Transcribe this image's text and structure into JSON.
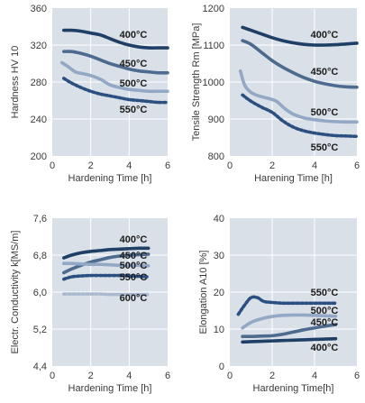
{
  "chart_data": [
    {
      "type": "line",
      "xlabel": "Hardening Time [h]",
      "ylabel": "Hardness HV 10",
      "xlim": [
        0,
        6
      ],
      "ylim": [
        200,
        360
      ],
      "xticks": [
        "0",
        "2",
        "4",
        "6"
      ],
      "yticks": [
        "200",
        "240",
        "280",
        "320",
        "360"
      ],
      "grid": true,
      "series": [
        {
          "name": "400°C",
          "color": "#1f3f66",
          "style": "solid",
          "x": [
            0.6,
            1.0,
            1.5,
            2.0,
            2.5,
            3.0,
            3.5,
            4.0,
            4.5,
            5.0,
            5.5,
            6.0
          ],
          "y": [
            336,
            336,
            335,
            333,
            331,
            327,
            323,
            320,
            318,
            317,
            317,
            317
          ]
        },
        {
          "name": "450°C",
          "color": "#4d6b8f",
          "style": "solid",
          "x": [
            0.6,
            1.0,
            1.5,
            2.0,
            2.5,
            3.0,
            3.5,
            4.0,
            4.5,
            5.0,
            5.5,
            6.0
          ],
          "y": [
            313,
            313,
            311,
            308,
            304,
            300,
            297,
            294,
            292,
            291,
            290,
            290
          ]
        },
        {
          "name": "500°C",
          "color": "#93a8c4",
          "style": "solid",
          "x": [
            0.5,
            0.8,
            1.2,
            1.6,
            2.0,
            2.5,
            3.0,
            3.5,
            4.0,
            4.5,
            5.0,
            5.5,
            6.0
          ],
          "y": [
            301,
            297,
            291,
            289,
            287,
            283,
            277,
            274,
            272,
            271,
            270,
            270,
            270
          ]
        },
        {
          "name": "550°C",
          "color": "#2a4f80",
          "style": "dotted",
          "x": [
            0.6,
            1.0,
            1.5,
            2.0,
            2.5,
            3.0,
            3.5,
            4.0,
            4.5,
            5.0,
            5.5,
            6.0
          ],
          "y": [
            284,
            279,
            274,
            270,
            267,
            265,
            263,
            261,
            260,
            259,
            258,
            258
          ]
        }
      ]
    },
    {
      "type": "line",
      "xlabel": "Harening Time [h]",
      "ylabel": "Tensile Strength Rm [MPa]",
      "xlim": [
        0,
        6
      ],
      "ylim": [
        800,
        1200
      ],
      "xticks": [
        "0",
        "2",
        "4",
        "6"
      ],
      "yticks": [
        "800",
        "900",
        "1000",
        "1100",
        "1200"
      ],
      "grid": true,
      "series": [
        {
          "name": "400°C",
          "color": "#1f3f66",
          "style": "solid",
          "x": [
            0.6,
            1.0,
            1.5,
            2.0,
            2.5,
            3.0,
            3.5,
            4.0,
            4.5,
            5.0,
            5.5,
            6.0
          ],
          "y": [
            1148,
            1140,
            1130,
            1120,
            1112,
            1106,
            1102,
            1100,
            1100,
            1101,
            1103,
            1105
          ]
        },
        {
          "name": "450°C",
          "color": "#4d6b8f",
          "style": "solid",
          "x": [
            0.6,
            1.0,
            1.5,
            2.0,
            2.5,
            3.0,
            3.5,
            4.0,
            4.5,
            5.0,
            5.5,
            6.0
          ],
          "y": [
            1112,
            1102,
            1080,
            1058,
            1040,
            1025,
            1012,
            1002,
            995,
            990,
            987,
            986
          ]
        },
        {
          "name": "500°C",
          "color": "#93a8c4",
          "style": "solid",
          "x": [
            0.5,
            0.7,
            1.0,
            1.4,
            1.8,
            2.2,
            2.6,
            3.0,
            3.5,
            4.0,
            4.5,
            5.0,
            5.5,
            6.0
          ],
          "y": [
            1030,
            992,
            972,
            962,
            956,
            948,
            928,
            913,
            903,
            898,
            895,
            893,
            892,
            892
          ]
        },
        {
          "name": "550°C",
          "color": "#2a4f80",
          "style": "dotted",
          "x": [
            0.6,
            1.0,
            1.5,
            2.0,
            2.5,
            3.0,
            3.5,
            4.0,
            4.5,
            5.0,
            5.5,
            6.0
          ],
          "y": [
            965,
            948,
            932,
            918,
            895,
            878,
            868,
            862,
            858,
            855,
            854,
            853
          ]
        }
      ]
    },
    {
      "type": "line",
      "xlabel": "Hardening Time [h]",
      "ylabel": "Electr. Conductivity k[MS/m]",
      "xlim": [
        0,
        6
      ],
      "ylim": [
        4.4,
        7.6
      ],
      "xticks": [
        "0",
        "2",
        "4",
        "6"
      ],
      "yticks": [
        "4,4",
        "5,2",
        "6,0",
        "6,8",
        "7,6"
      ],
      "grid": true,
      "series": [
        {
          "name": "400°C",
          "color": "#1f3f66",
          "style": "solid",
          "x": [
            0.6,
            1.0,
            1.5,
            2.0,
            2.5,
            3.0,
            3.5,
            4.0,
            4.5,
            5.0
          ],
          "y": [
            6.74,
            6.8,
            6.85,
            6.88,
            6.9,
            6.92,
            6.93,
            6.94,
            6.95,
            6.95
          ]
        },
        {
          "name": "450°C",
          "color": "#4d6b8f",
          "style": "solid",
          "x": [
            0.6,
            1.0,
            1.5,
            2.0,
            2.5,
            3.0,
            3.5,
            4.0,
            4.5,
            5.0
          ],
          "y": [
            6.42,
            6.5,
            6.58,
            6.65,
            6.7,
            6.75,
            6.78,
            6.8,
            6.81,
            6.82
          ]
        },
        {
          "name": "500°C",
          "color": "#93a8c4",
          "style": "solid",
          "x": [
            0.6,
            1.0,
            1.5,
            2.0,
            2.5,
            3.0,
            3.5,
            4.0,
            4.5,
            5.0
          ],
          "y": [
            6.62,
            6.62,
            6.61,
            6.6,
            6.6,
            6.59,
            6.58,
            6.58,
            6.58,
            6.57
          ]
        },
        {
          "name": "550°C",
          "color": "#2a4f80",
          "style": "dotted",
          "x": [
            0.6,
            1.0,
            1.5,
            2.0,
            2.5,
            3.0,
            3.5,
            4.0,
            4.5,
            5.0
          ],
          "y": [
            6.28,
            6.33,
            6.35,
            6.36,
            6.36,
            6.36,
            6.36,
            6.35,
            6.34,
            6.33
          ]
        },
        {
          "name": "600°C",
          "color": "#a9b9cf",
          "style": "dotted",
          "x": [
            0.6,
            1.0,
            1.5,
            2.0,
            2.5,
            3.0,
            3.5,
            4.0,
            4.5,
            5.0
          ],
          "y": [
            5.96,
            5.96,
            5.96,
            5.96,
            5.96,
            5.95,
            5.95,
            5.95,
            5.95,
            5.95
          ]
        }
      ]
    },
    {
      "type": "line",
      "xlabel": "Hardening Time[h]",
      "ylabel": "Elongation A10 [%]",
      "xlim": [
        0,
        6
      ],
      "ylim": [
        0,
        40
      ],
      "xticks": [
        "0",
        "2",
        "4",
        "6"
      ],
      "yticks": [
        "0",
        "10",
        "20",
        "30",
        "40"
      ],
      "grid": true,
      "series": [
        {
          "name": "550°C",
          "color": "#2a4f80",
          "style": "dotted",
          "x": [
            0.4,
            0.7,
            1.0,
            1.3,
            1.6,
            2.0,
            2.5,
            3.0,
            3.5,
            4.0,
            4.5,
            5.0
          ],
          "y": [
            14,
            16.5,
            18.5,
            18.5,
            17.5,
            17.2,
            17,
            17,
            17,
            17,
            17,
            17
          ]
        },
        {
          "name": "500°C",
          "color": "#93a8c4",
          "style": "solid",
          "x": [
            0.6,
            1.0,
            1.5,
            2.0,
            2.5,
            3.0,
            3.5,
            4.0,
            4.5,
            5.0
          ],
          "y": [
            10.3,
            11.8,
            12.8,
            13.4,
            13.7,
            13.8,
            13.8,
            13.7,
            13.6,
            13.5
          ]
        },
        {
          "name": "450°C",
          "color": "#4d6b8f",
          "style": "solid",
          "x": [
            0.6,
            1.0,
            1.5,
            2.0,
            2.5,
            3.0,
            3.5,
            4.0,
            4.5,
            5.0
          ],
          "y": [
            8.0,
            8.0,
            8.1,
            8.2,
            8.6,
            9.2,
            9.8,
            10.3,
            10.8,
            11.2
          ]
        },
        {
          "name": "400°C",
          "color": "#1f3f66",
          "style": "solid",
          "x": [
            0.6,
            1.0,
            1.5,
            2.0,
            2.5,
            3.0,
            3.5,
            4.0,
            4.5,
            5.0
          ],
          "y": [
            6.5,
            6.6,
            6.7,
            6.8,
            6.9,
            7.0,
            7.1,
            7.2,
            7.3,
            7.4
          ]
        }
      ]
    }
  ]
}
